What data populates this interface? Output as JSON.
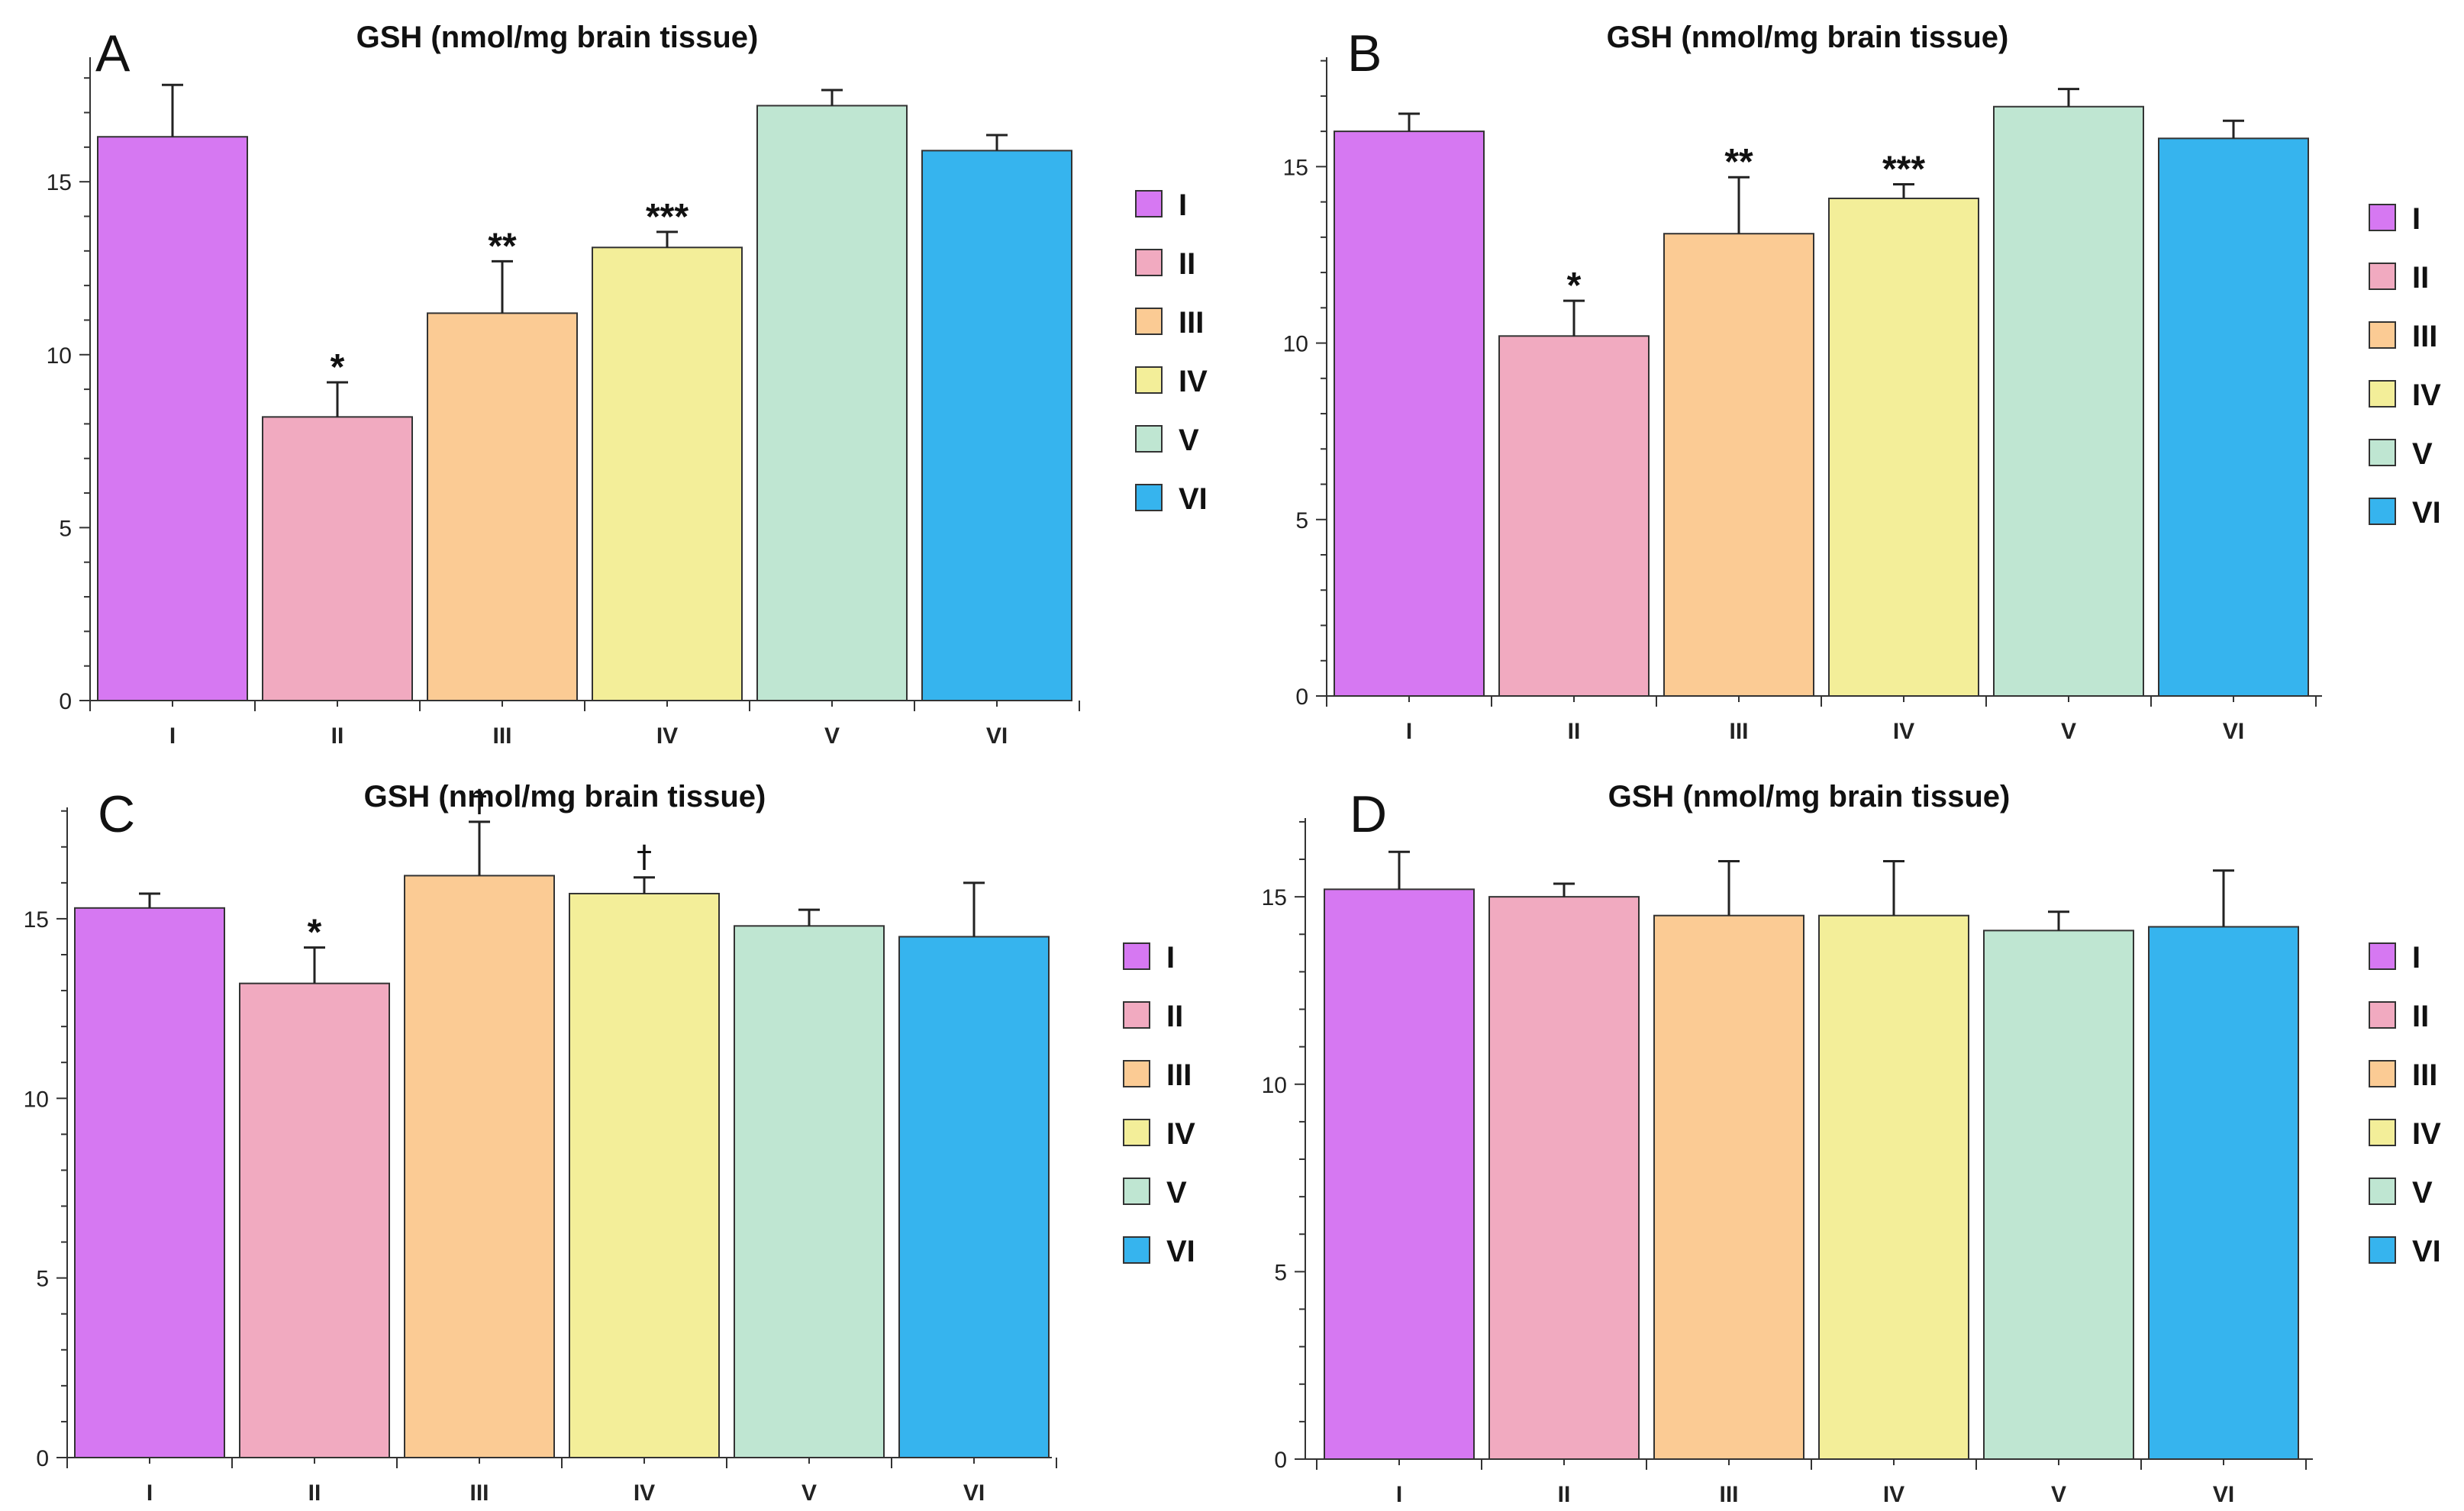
{
  "chart_data": [
    {
      "panel": "A",
      "type": "bar",
      "title": "GSH (nmol/mg brain tissue)",
      "categories": [
        "I",
        "II",
        "III",
        "IV",
        "V",
        "VI"
      ],
      "values": [
        16.3,
        8.2,
        11.2,
        13.1,
        17.2,
        15.9
      ],
      "errors": [
        1.5,
        1.0,
        1.5,
        0.45,
        0.45,
        0.45
      ],
      "annotations": [
        "",
        "*",
        "**",
        "***",
        "",
        ""
      ],
      "yticks": [
        0,
        5,
        10,
        15
      ],
      "ylim": [
        0,
        18.6
      ],
      "xlabel": "",
      "ylabel": ""
    },
    {
      "panel": "B",
      "type": "bar",
      "title": "GSH (nmol/mg brain tissue)",
      "categories": [
        "I",
        "II",
        "III",
        "IV",
        "V",
        "VI"
      ],
      "values": [
        16.0,
        10.2,
        13.1,
        14.1,
        16.7,
        15.8
      ],
      "errors": [
        0.5,
        1.0,
        1.6,
        0.4,
        0.5,
        0.5
      ],
      "annotations": [
        "",
        "*",
        "**",
        "***",
        "",
        ""
      ],
      "yticks": [
        0,
        5,
        10,
        15
      ],
      "ylim": [
        0,
        18.1
      ],
      "xlabel": "",
      "ylabel": ""
    },
    {
      "panel": "C",
      "type": "bar",
      "title": "GSH (nmol/mg brain tissue)",
      "categories": [
        "I",
        "II",
        "III",
        "IV",
        "V",
        "VI"
      ],
      "values": [
        15.3,
        13.2,
        16.2,
        15.7,
        14.8,
        14.5
      ],
      "errors": [
        0.4,
        1.0,
        1.5,
        0.45,
        0.45,
        1.5
      ],
      "annotations": [
        "",
        "*",
        "†",
        "†",
        "",
        ""
      ],
      "yticks": [
        0,
        5,
        10,
        15
      ],
      "ylim": [
        0,
        18.1
      ],
      "xlabel": "",
      "ylabel": ""
    },
    {
      "panel": "D",
      "type": "bar",
      "title": "GSH (nmol/mg brain tissue)",
      "categories": [
        "I",
        "II",
        "III",
        "IV",
        "V",
        "VI"
      ],
      "values": [
        15.2,
        15.0,
        14.5,
        14.5,
        14.1,
        14.2
      ],
      "errors": [
        1.0,
        0.35,
        1.45,
        1.45,
        0.5,
        1.5
      ],
      "annotations": [
        "",
        "",
        "",
        "",
        "",
        ""
      ],
      "yticks": [
        0,
        5,
        10,
        15
      ],
      "ylim": [
        0,
        17.1
      ],
      "xlabel": "",
      "ylabel": ""
    }
  ],
  "legend": {
    "position": "right",
    "items": [
      "I",
      "II",
      "III",
      "IV",
      "V",
      "VI"
    ]
  },
  "colors": {
    "groups": [
      "#d678f2",
      "#f1aac0",
      "#fbcb94",
      "#f3ee99",
      "#bfe6d2",
      "#36b4ee"
    ],
    "axis": "#333333",
    "bar_outline": "#333333"
  }
}
